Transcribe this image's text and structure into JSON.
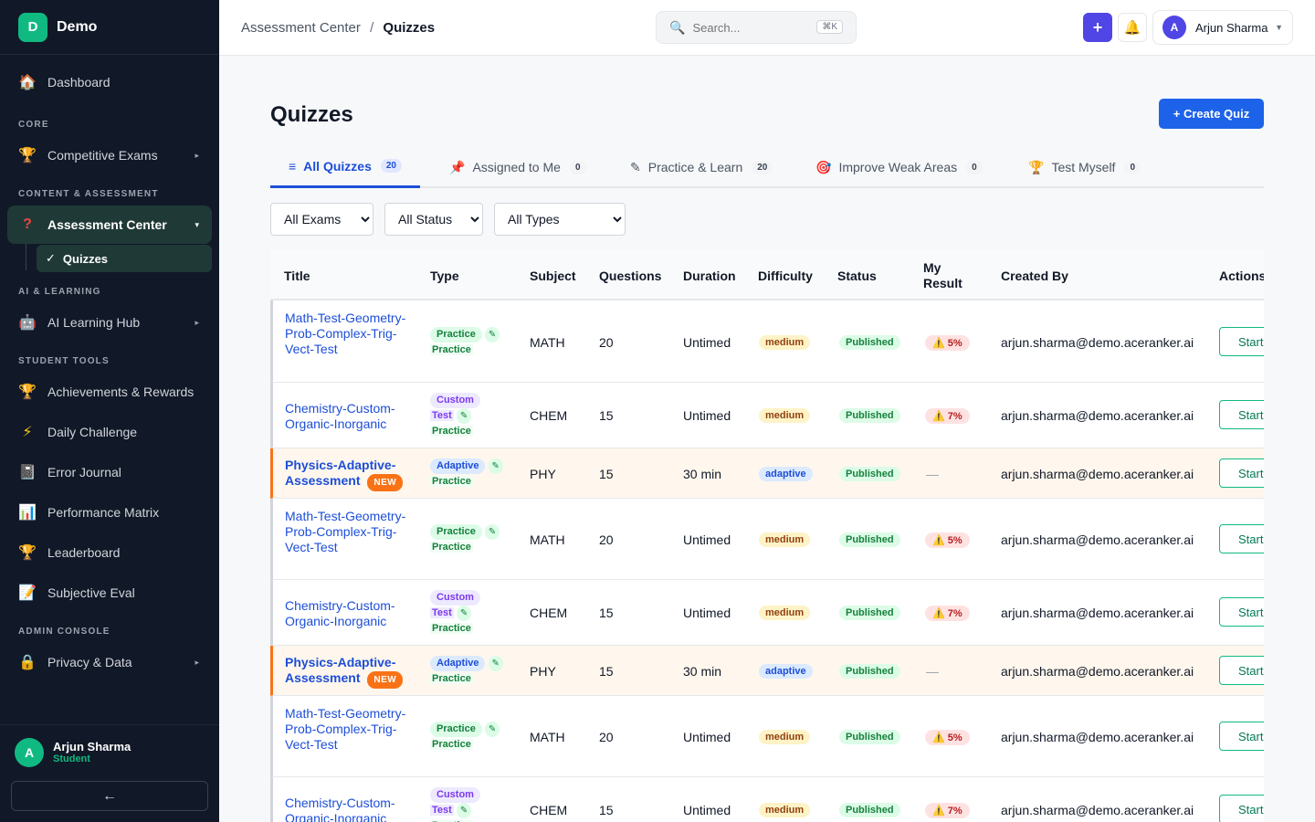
{
  "brand": {
    "logo_letter": "D",
    "name": "Demo"
  },
  "sidebar": {
    "dashboard": "Dashboard",
    "sections": {
      "core": "CORE",
      "content": "CONTENT & ASSESSMENT",
      "ai": "AI & LEARNING",
      "student": "STUDENT TOOLS",
      "admin": "ADMIN CONSOLE"
    },
    "competitive_exams": "Competitive Exams",
    "assessment_center": "Assessment Center",
    "quizzes": "Quizzes",
    "ai_learning_hub": "AI Learning Hub",
    "achievements": "Achievements & Rewards",
    "daily_challenge": "Daily Challenge",
    "error_journal": "Error Journal",
    "performance_matrix": "Performance Matrix",
    "leaderboard": "Leaderboard",
    "subjective_eval": "Subjective Eval",
    "privacy": "Privacy & Data",
    "user": {
      "initial": "A",
      "name": "Arjun Sharma",
      "role": "Student"
    },
    "collapse": "←"
  },
  "topbar": {
    "breadcrumb_parent": "Assessment Center",
    "breadcrumb_sep": "/",
    "breadcrumb_current": "Quizzes",
    "search_placeholder": "Search...",
    "search_shortcut": "⌘K",
    "plus": "+",
    "user_initial": "A",
    "user_name": "Arjun Sharma"
  },
  "page": {
    "title": "Quizzes",
    "create_button": "+ Create Quiz"
  },
  "tabs": [
    {
      "label": "All Quizzes",
      "count": "20"
    },
    {
      "label": "Assigned to Me",
      "count": "0"
    },
    {
      "label": "Practice & Learn",
      "count": "20"
    },
    {
      "label": "Improve Weak Areas",
      "count": "0"
    },
    {
      "label": "Test Myself",
      "count": "0"
    }
  ],
  "filters": {
    "exams": "All Exams",
    "status": "All Status",
    "types": "All Types"
  },
  "columns": {
    "title": "Title",
    "type": "Type",
    "subject": "Subject",
    "questions": "Questions",
    "duration": "Duration",
    "difficulty": "Difficulty",
    "status": "Status",
    "my_result": "My Result",
    "created_by": "Created By",
    "actions": "Actions"
  },
  "labels": {
    "practice": "Practice",
    "custom": "Custom",
    "test": "Test",
    "adaptive": "Adaptive",
    "new": "NEW",
    "published": "Published",
    "start": "Start",
    "pencil": "✎",
    "dash": "—"
  },
  "rows": [
    {
      "title": "Math-Test-Geometry-Prob-Complex-Trig-Vect-Test",
      "subject": "MATH",
      "questions": "20",
      "duration": "Untimed",
      "difficulty": "medium",
      "result": "5%",
      "created_by": "arjun.sharma@demo.aceranker.ai"
    },
    {
      "title": "Chemistry-Custom-Organic-Inorganic",
      "subject": "CHEM",
      "questions": "15",
      "duration": "Untimed",
      "difficulty": "medium",
      "result": "7%",
      "created_by": "arjun.sharma@demo.aceranker.ai"
    },
    {
      "title": "Physics-Adaptive-Assessment",
      "subject": "PHY",
      "questions": "15",
      "duration": "30 min",
      "difficulty": "adaptive",
      "result": "",
      "created_by": "arjun.sharma@demo.aceranker.ai"
    },
    {
      "title": "Math-Test-Geometry-Prob-Complex-Trig-Vect-Test",
      "subject": "MATH",
      "questions": "20",
      "duration": "Untimed",
      "difficulty": "medium",
      "result": "5%",
      "created_by": "arjun.sharma@demo.aceranker.ai"
    },
    {
      "title": "Chemistry-Custom-Organic-Inorganic",
      "subject": "CHEM",
      "questions": "15",
      "duration": "Untimed",
      "difficulty": "medium",
      "result": "7%",
      "created_by": "arjun.sharma@demo.aceranker.ai"
    },
    {
      "title": "Physics-Adaptive-Assessment",
      "subject": "PHY",
      "questions": "15",
      "duration": "30 min",
      "difficulty": "adaptive",
      "result": "",
      "created_by": "arjun.sharma@demo.aceranker.ai"
    },
    {
      "title": "Math-Test-Geometry-Prob-Complex-Trig-Vect-Test",
      "subject": "MATH",
      "questions": "20",
      "duration": "Untimed",
      "difficulty": "medium",
      "result": "5%",
      "created_by": "arjun.sharma@demo.aceranker.ai"
    },
    {
      "title": "Chemistry-Custom-Organic-Inorganic",
      "subject": "CHEM",
      "questions": "15",
      "duration": "Untimed",
      "difficulty": "medium",
      "result": "7%",
      "created_by": "arjun.sharma@demo.aceranker.ai"
    }
  ]
}
